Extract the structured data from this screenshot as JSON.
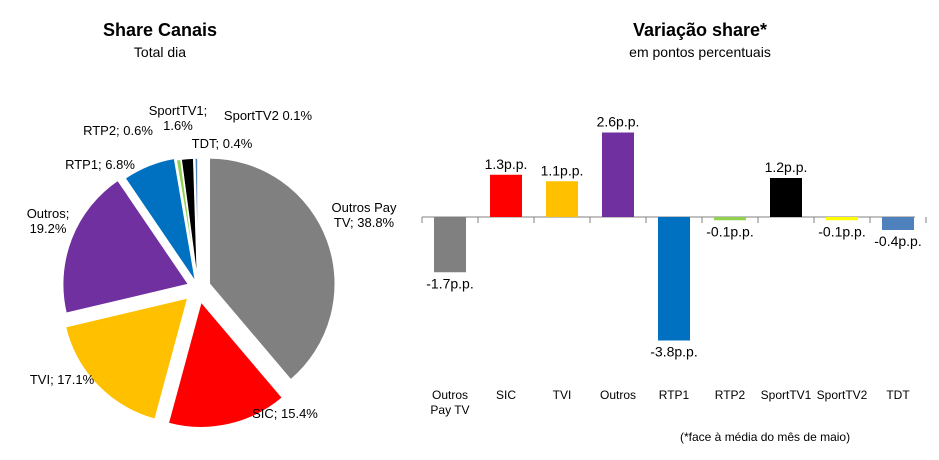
{
  "chart_data": [
    {
      "type": "pie",
      "title": "Share Canais",
      "subtitle": "Total dia",
      "slices": [
        {
          "name": "Outros Pay TV",
          "value": 38.8,
          "label_lines": [
            "Outros Pay",
            "TV; 38.8%"
          ],
          "color": "#808080"
        },
        {
          "name": "SIC",
          "value": 15.4,
          "label_lines": [
            "SIC; 15.4%"
          ],
          "color": "#ff0000"
        },
        {
          "name": "TVI",
          "value": 17.1,
          "label_lines": [
            "TVI; 17.1%"
          ],
          "color": "#ffc000"
        },
        {
          "name": "Outros",
          "value": 19.2,
          "label_lines": [
            "Outros;",
            "19.2%"
          ],
          "color": "#7030a0"
        },
        {
          "name": "RTP1",
          "value": 6.8,
          "label_lines": [
            "RTP1; 6.8%"
          ],
          "color": "#0070c0"
        },
        {
          "name": "RTP2",
          "value": 0.6,
          "label_lines": [
            "RTP2; 0.6%"
          ],
          "color": "#92d050"
        },
        {
          "name": "SportTV1",
          "value": 1.6,
          "label_lines": [
            "SportTV1;",
            "1.6%"
          ],
          "color": "#000000"
        },
        {
          "name": "SportTV2",
          "value": 0.1,
          "label_lines": [
            "SportTV2 0.1%"
          ],
          "color": "#ffff00"
        },
        {
          "name": "TDT",
          "value": 0.4,
          "label_lines": [
            "TDT; 0.4%"
          ],
          "color": "#4f81bd"
        }
      ]
    },
    {
      "type": "bar",
      "title": "Variação share*",
      "subtitle": "em pontos percentuais",
      "categories": [
        [
          "Outros",
          "Pay TV"
        ],
        [
          "SIC"
        ],
        [
          "TVI"
        ],
        [
          "Outros"
        ],
        [
          "RTP1"
        ],
        [
          "RTP2"
        ],
        [
          "SportTV1"
        ],
        [
          "SportTV2"
        ],
        [
          "TDT"
        ]
      ],
      "values": [
        -1.7,
        1.3,
        1.1,
        2.6,
        -3.8,
        -0.1,
        1.2,
        -0.1,
        -0.4
      ],
      "value_labels": [
        "-1.7p.p.",
        "1.3p.p.",
        "1.1p.p.",
        "2.6p.p.",
        "-3.8p.p.",
        "-0.1p.p.",
        "1.2p.p.",
        "-0.1p.p.",
        "-0.4p.p."
      ],
      "colors": [
        "#808080",
        "#ff0000",
        "#ffc000",
        "#7030a0",
        "#0070c0",
        "#92d050",
        "#000000",
        "#ffff00",
        "#4f81bd"
      ],
      "footnote": "(*face à média do mês de maio)"
    }
  ]
}
